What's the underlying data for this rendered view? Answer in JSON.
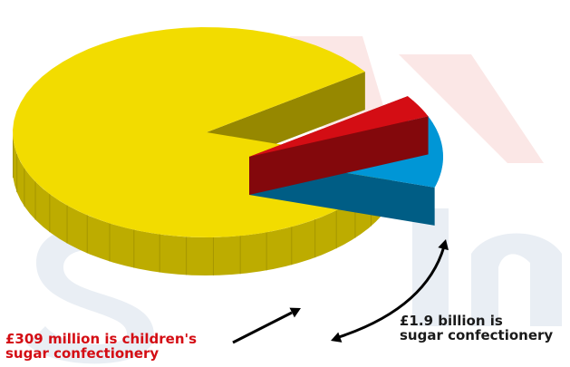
{
  "chart_data": {
    "type": "pie",
    "title": "",
    "slices": [
      {
        "label": "",
        "value_share": 0.855,
        "color": "#f2dc00"
      },
      {
        "label": "£309 million is children's sugar confectionery",
        "value_share": 0.035,
        "color": "#d40d14"
      },
      {
        "label": "",
        "value_share": 0.11,
        "color": "#0096d6"
      }
    ],
    "annotations": [
      {
        "lines": [
          "£309 million is children's",
          "sugar confectionery"
        ],
        "color": "#d40d14"
      },
      {
        "lines": [
          "£1.9 billion is",
          "sugar confectionery"
        ],
        "color": "#1a1a1a"
      }
    ],
    "legend": "none",
    "grid": false
  }
}
